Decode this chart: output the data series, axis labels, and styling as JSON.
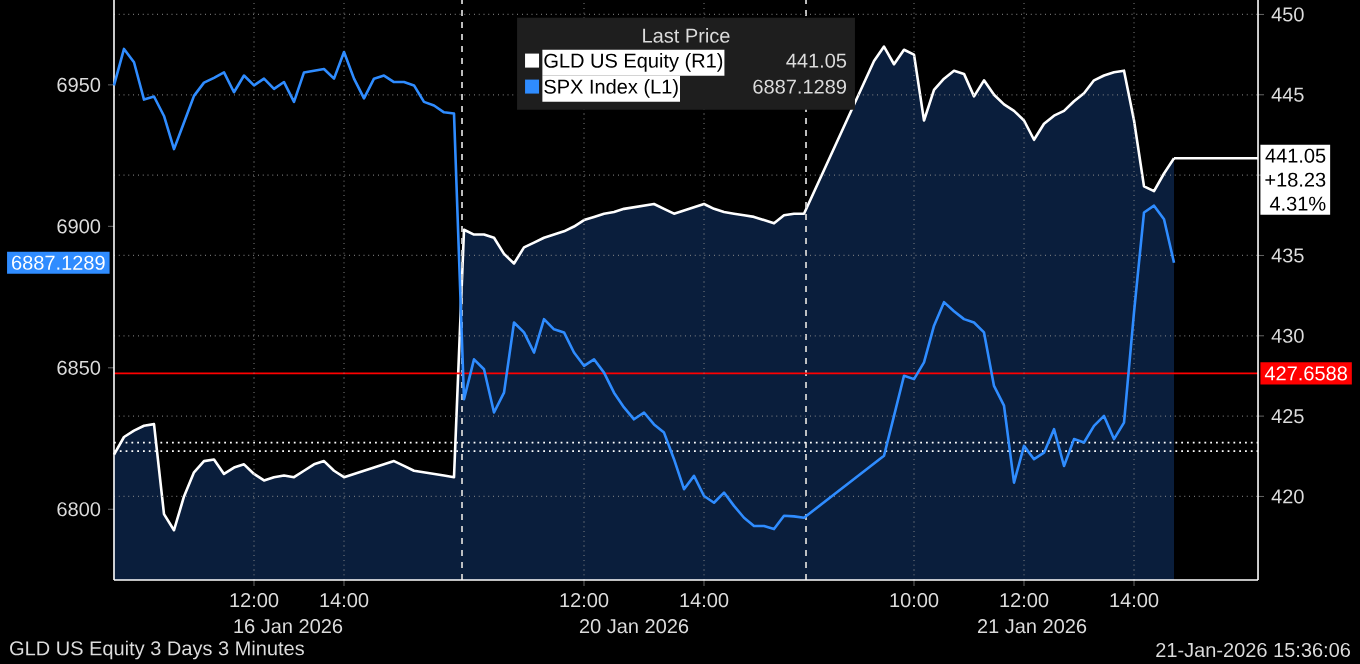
{
  "chart_data": {
    "type": "line",
    "legend_title": "Last Price",
    "legend": "top",
    "grid": true,
    "categories": [
      null,
      null,
      null,
      null,
      null,
      null,
      null,
      null,
      null,
      null,
      null,
      null,
      null,
      null,
      "12:00",
      null,
      null,
      null,
      null,
      null,
      null,
      null,
      null,
      "14:00",
      null,
      null,
      null,
      null,
      null,
      null,
      null,
      null,
      null,
      null,
      null,
      null,
      null,
      null,
      null,
      null,
      null,
      null,
      null,
      null,
      null,
      null,
      null,
      "12:00",
      null,
      null,
      null,
      null,
      null,
      null,
      null,
      null,
      null,
      null,
      null,
      "14:00",
      null,
      null,
      null,
      null,
      null,
      null,
      null,
      null,
      null,
      null,
      null,
      null,
      null,
      null,
      null,
      null,
      null,
      null,
      null,
      null,
      "10:00",
      null,
      null,
      null,
      null,
      null,
      null,
      null,
      null,
      null,
      null,
      "12:00",
      null,
      null,
      null,
      null,
      null,
      null,
      null,
      null,
      null,
      null,
      "14:00",
      null,
      null,
      null,
      null,
      null,
      null,
      null,
      null,
      null,
      null,
      null,
      null
    ],
    "ylim": [
      6775,
      6980
    ],
    "yticks": [
      6800,
      6850,
      6900,
      6950
    ],
    "y2lim": [
      414.8,
      450.9
    ],
    "y2ticks": [
      420,
      425,
      430,
      435,
      {
        "value": 440,
        "label": null
      },
      445,
      450
    ],
    "series": [
      {
        "name": "GLD US Equity (R1)",
        "type": "area",
        "axis": "y2",
        "color": "#ffffff",
        "values": [
          422.6,
          423.7,
          424.1,
          424.4,
          424.5,
          418.9,
          417.9,
          420.0,
          421.5,
          422.2,
          422.3,
          421.4,
          421.8,
          422.0,
          421.4,
          421.0,
          421.2,
          421.3,
          421.2,
          421.6,
          422.0,
          422.2,
          421.6,
          421.2,
          421.4,
          421.6,
          421.8,
          422.0,
          422.2,
          421.9,
          421.6,
          421.5,
          421.4,
          421.3,
          421.2,
          436.6,
          436.3,
          436.3,
          436.1,
          435.1,
          434.5,
          435.5,
          435.8,
          436.1,
          436.3,
          436.5,
          436.8,
          437.2,
          437.4,
          437.6,
          437.7,
          437.9,
          438.0,
          438.1,
          438.2,
          437.9,
          437.6,
          437.8,
          438.0,
          438.2,
          437.9,
          437.7,
          437.6,
          437.5,
          437.4,
          437.2,
          437.0,
          437.5,
          437.6,
          437.6,
          null,
          null,
          null,
          null,
          null,
          null,
          447.1,
          448.0,
          446.9,
          447.8,
          447.5,
          443.4,
          445.3,
          446.0,
          446.5,
          446.3,
          444.9,
          445.9,
          445.0,
          444.4,
          444.0,
          443.4,
          442.2,
          443.2,
          443.7,
          444.0,
          444.6,
          445.1,
          445.9,
          446.2,
          446.4,
          446.5,
          443.4,
          439.3,
          439.0,
          440.1,
          441.05,
          null,
          null,
          null,
          null,
          null,
          null,
          null,
          null
        ]
      },
      {
        "name": "SPX Index (L1)",
        "axis": "y",
        "color": "#2f8cff",
        "values": [
          6949.8,
          6962.7,
          6958,
          6944.8,
          6945.9,
          6939,
          6927.3,
          6936.7,
          6946.1,
          6950.8,
          6952.5,
          6954.4,
          6947.4,
          6953.3,
          6949.8,
          6952.2,
          6948.6,
          6951,
          6944,
          6954.4,
          6955,
          6955.6,
          6952.2,
          6961.6,
          6952.2,
          6945.2,
          6952.2,
          6953.3,
          6951,
          6951,
          6949.8,
          6944,
          6942.7,
          6940.3,
          6939.9,
          6838.9,
          6853,
          6849.5,
          6834.2,
          6841.2,
          6866,
          6862.5,
          6855.4,
          6867.2,
          6863.6,
          6862.5,
          6855.4,
          6850.7,
          6853,
          6848.3,
          6841.2,
          6836,
          6831.8,
          6834.2,
          6830,
          6827.1,
          6817.7,
          6807.1,
          6811.8,
          6804.7,
          6802.3,
          6805.9,
          6801.2,
          6797,
          6794.1,
          6794.1,
          6793,
          6797.7,
          6797.5,
          6797,
          null,
          null,
          null,
          null,
          null,
          null,
          null,
          6818.9,
          6833,
          6847.2,
          6846,
          6851.9,
          6864.9,
          6873.2,
          6870,
          6867.2,
          6866,
          6862.5,
          6843.6,
          6836.6,
          6809.4,
          6822.4,
          6817.7,
          6820,
          6828.3,
          6815.3,
          6824.8,
          6823.6,
          6829.5,
          6833,
          6824.8,
          6830.6,
          6869.6,
          6904.9,
          6907.3,
          6902.5,
          6887.1289,
          null,
          null,
          null,
          null,
          null,
          null,
          null,
          null
        ]
      }
    ],
    "ref_lines": [
      {
        "axis": "y2",
        "value": 427.6588,
        "label": "427.6588",
        "color": "#ff0000",
        "line_style": "solid"
      },
      {
        "axis": "y2",
        "value": 422.82,
        "color": "#ffffff",
        "line_style": "dotted"
      },
      {
        "axis": "y2",
        "value": 423.35,
        "color": "#ffffff",
        "line_style": "dotted"
      }
    ],
    "annotations": [
      "16 Jan 2026",
      "20 Jan 2026",
      "21 Jan 2026",
      "441.05",
      "+18.23",
      "4.31%",
      "6887.1289",
      "GLD US Equity 3 Days 3 Minutes",
      "21-Jan-2026 15:36:06",
      "441.05",
      "6887.1289"
    ]
  }
}
